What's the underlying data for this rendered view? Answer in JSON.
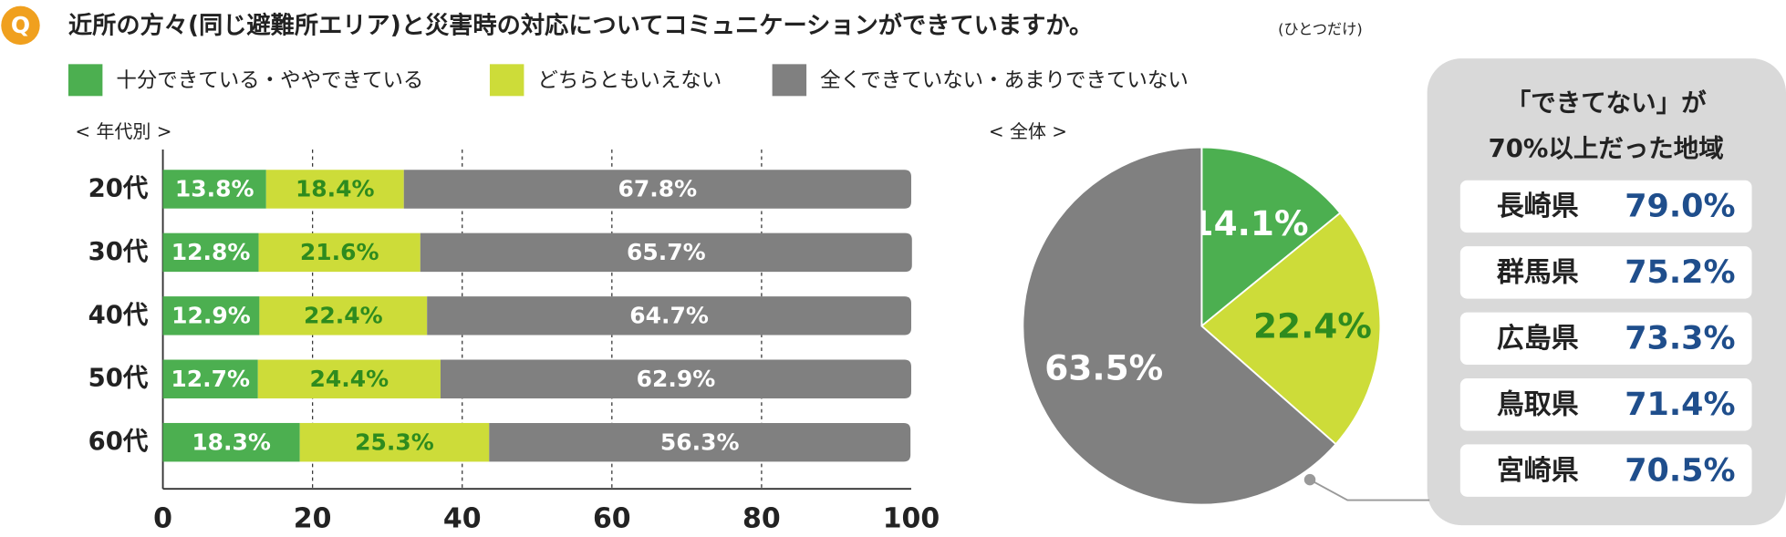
{
  "question_badge": "Q",
  "title": "近所の方々(同じ避難所エリア)と災害時の対応についてコミュニケーションができていますか。",
  "title_note": "(ひとつだけ)",
  "chart_data": [
    {
      "type": "stacked-bar-horizontal",
      "subtitle": "< 年代別 >",
      "categories": [
        "20代",
        "30代",
        "40代",
        "50代",
        "60代"
      ],
      "series": [
        {
          "name": "十分できている・ややできている",
          "color": "#4caf50",
          "label_color": "#ffffff",
          "values": [
            13.8,
            12.8,
            12.9,
            12.7,
            18.3
          ],
          "value_labels": [
            "13.8%",
            "12.8%",
            "12.9%",
            "12.7%",
            "18.3%"
          ]
        },
        {
          "name": "どちらともいえない",
          "color": "#cddc39",
          "label_color": "#2e8b1e",
          "values": [
            18.4,
            21.6,
            22.4,
            24.4,
            25.3
          ],
          "value_labels": [
            "18.4%",
            "21.6%",
            "22.4%",
            "24.4%",
            "25.3%"
          ]
        },
        {
          "name": "全くできていない・あまりできていない",
          "color": "#808080",
          "label_color": "#ffffff",
          "values": [
            67.8,
            65.7,
            64.7,
            62.9,
            56.3
          ],
          "value_labels": [
            "67.8%",
            "65.7%",
            "64.7%",
            "62.9%",
            "56.3%"
          ]
        }
      ],
      "xlim": [
        0,
        100
      ],
      "xticks": [
        0,
        20,
        40,
        60,
        80,
        100
      ],
      "grid": true
    },
    {
      "type": "pie",
      "subtitle": "< 全体 >",
      "values": [
        14.1,
        22.4,
        63.5
      ],
      "value_labels": [
        "14.1%",
        "22.4%",
        "63.5%"
      ],
      "colors": [
        "#4caf50",
        "#cddc39",
        "#808080"
      ],
      "label_colors": [
        "#ffffff",
        "#2e8b1e",
        "#ffffff"
      ]
    }
  ],
  "callout": {
    "title_lines": [
      "「できてない」が",
      "70%以上だった地域"
    ],
    "rows": [
      [
        "長崎県",
        "79.0%"
      ],
      [
        "群馬県",
        "75.2%"
      ],
      [
        "広島県",
        "73.3%"
      ],
      [
        "鳥取県",
        "71.4%"
      ],
      [
        "宮崎県",
        "70.5%"
      ]
    ]
  }
}
